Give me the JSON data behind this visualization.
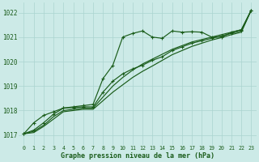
{
  "title": "Graphe pression niveau de la mer (hPa)",
  "background_color": "#cceae7",
  "grid_color": "#aad4d0",
  "line_color": "#1a5c1a",
  "xlim": [
    -0.5,
    23.5
  ],
  "ylim": [
    1016.6,
    1022.4
  ],
  "yticks": [
    1017,
    1018,
    1019,
    1020,
    1021,
    1022
  ],
  "xticks": [
    0,
    1,
    2,
    3,
    4,
    5,
    6,
    7,
    8,
    9,
    10,
    11,
    12,
    13,
    14,
    15,
    16,
    17,
    18,
    19,
    20,
    21,
    22,
    23
  ],
  "series_nomarker_1_x": [
    0,
    1,
    2,
    3,
    4,
    5,
    6,
    7,
    8,
    9,
    10,
    11,
    12,
    13,
    14,
    15,
    16,
    17,
    18,
    19,
    20,
    21,
    22,
    23
  ],
  "series_nomarker_1_y": [
    1017.05,
    1017.15,
    1017.4,
    1017.75,
    1018.0,
    1018.05,
    1018.1,
    1018.1,
    1018.55,
    1019.0,
    1019.35,
    1019.65,
    1019.9,
    1020.1,
    1020.3,
    1020.5,
    1020.65,
    1020.8,
    1020.9,
    1021.0,
    1021.1,
    1021.2,
    1021.3,
    1022.1
  ],
  "series_nomarker_2_x": [
    0,
    1,
    2,
    3,
    4,
    5,
    6,
    7,
    8,
    9,
    10,
    11,
    12,
    13,
    14,
    15,
    16,
    17,
    18,
    19,
    20,
    21,
    22,
    23
  ],
  "series_nomarker_2_y": [
    1017.05,
    1017.1,
    1017.35,
    1017.65,
    1017.95,
    1018.0,
    1018.05,
    1018.05,
    1018.4,
    1018.75,
    1019.05,
    1019.35,
    1019.6,
    1019.82,
    1020.05,
    1020.28,
    1020.45,
    1020.62,
    1020.75,
    1020.88,
    1020.98,
    1021.1,
    1021.2,
    1022.1
  ],
  "series_marker_1_x": [
    0,
    1,
    2,
    3,
    4,
    5,
    6,
    7,
    8,
    9,
    10,
    11,
    12,
    13,
    14,
    15,
    16,
    17,
    18,
    19,
    20,
    21,
    22,
    23
  ],
  "series_marker_1_y": [
    1017.05,
    1017.5,
    1017.8,
    1017.95,
    1018.1,
    1018.15,
    1018.2,
    1018.25,
    1019.3,
    1019.85,
    1021.0,
    1021.15,
    1021.25,
    1021.0,
    1020.95,
    1021.25,
    1021.2,
    1021.22,
    1021.2,
    1021.0,
    1021.0,
    1021.2,
    1021.3,
    1022.1
  ],
  "series_marker_2_x": [
    0,
    1,
    2,
    3,
    4,
    5,
    6,
    7,
    8,
    9,
    10,
    11,
    12,
    13,
    14,
    15,
    16,
    17,
    18,
    19,
    20,
    21,
    22,
    23
  ],
  "series_marker_2_y": [
    1017.05,
    1017.2,
    1017.5,
    1017.85,
    1018.1,
    1018.12,
    1018.15,
    1018.15,
    1018.75,
    1019.2,
    1019.5,
    1019.7,
    1019.85,
    1020.05,
    1020.2,
    1020.45,
    1020.6,
    1020.75,
    1020.85,
    1020.95,
    1021.05,
    1021.15,
    1021.25,
    1022.1
  ]
}
